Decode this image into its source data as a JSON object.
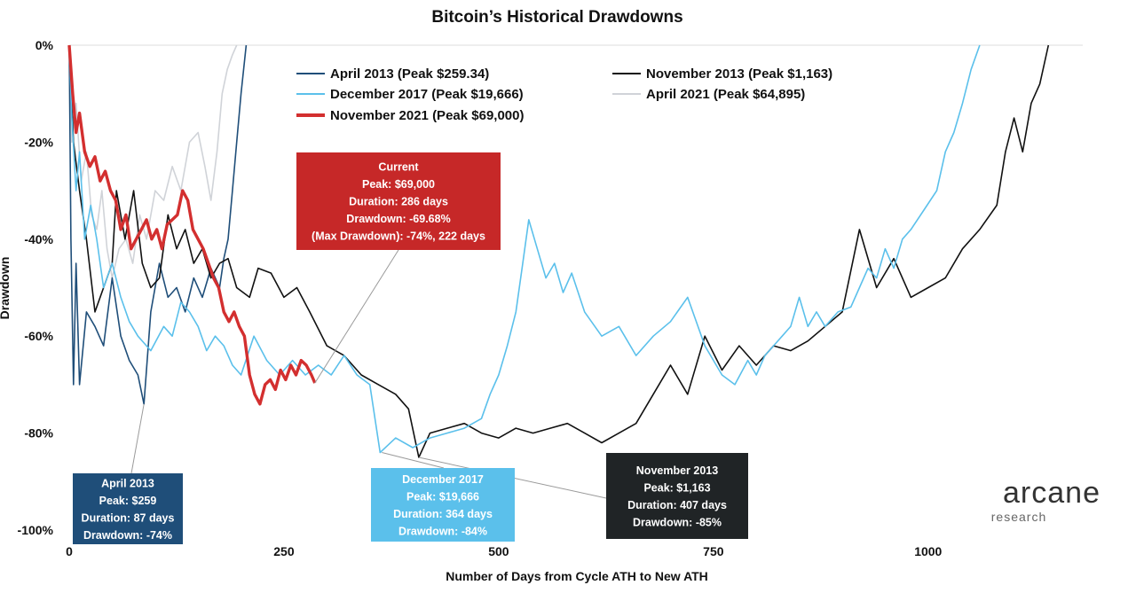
{
  "colors": {
    "apr2013": "#1f4e79",
    "nov2013": "#111111",
    "dec2017": "#5bc0eb",
    "apr2021": "#d0d3d8",
    "nov2021": "#d32f2f",
    "box_apr2013": "#1f4e79",
    "box_dec2017": "#5bc0eb",
    "box_nov2013": "#202426",
    "box_current": "#c62828"
  },
  "logo": {
    "name": "arcane",
    "sub": "research"
  },
  "chart_data": {
    "type": "line",
    "title": "Bitcoin’s Historical Drawdowns",
    "xlabel": "Number of Days from Cycle ATH to New ATH",
    "ylabel": "Drawdown",
    "xlim": [
      0,
      1180
    ],
    "ylim": [
      -100,
      0
    ],
    "xticks": [
      0,
      250,
      500,
      750,
      1000
    ],
    "yticks": [
      0,
      -20,
      -40,
      -60,
      -80,
      -100
    ],
    "ytick_labels": [
      "0%",
      "-20%",
      "-40%",
      "-60%",
      "-80%",
      "-100%"
    ],
    "grid": false,
    "legend_position": "top",
    "series": [
      {
        "key": "apr2013",
        "name": "April 2013 (Peak $259.34)",
        "width": 1.6,
        "points": [
          [
            0,
            0
          ],
          [
            2,
            -40
          ],
          [
            5,
            -70
          ],
          [
            8,
            -45
          ],
          [
            12,
            -70
          ],
          [
            20,
            -55
          ],
          [
            30,
            -58
          ],
          [
            40,
            -62
          ],
          [
            50,
            -48
          ],
          [
            60,
            -60
          ],
          [
            70,
            -65
          ],
          [
            80,
            -68
          ],
          [
            87,
            -74
          ],
          [
            95,
            -55
          ],
          [
            105,
            -45
          ],
          [
            115,
            -52
          ],
          [
            125,
            -50
          ],
          [
            135,
            -55
          ],
          [
            145,
            -48
          ],
          [
            155,
            -52
          ],
          [
            165,
            -46
          ],
          [
            175,
            -50
          ],
          [
            180,
            -44
          ],
          [
            185,
            -40
          ],
          [
            190,
            -30
          ],
          [
            195,
            -20
          ],
          [
            200,
            -10
          ],
          [
            206,
            0
          ]
        ]
      },
      {
        "key": "nov2013",
        "name": "November 2013 (Peak $1,163)",
        "width": 1.6,
        "points": [
          [
            0,
            0
          ],
          [
            5,
            -20
          ],
          [
            12,
            -30
          ],
          [
            20,
            -40
          ],
          [
            30,
            -55
          ],
          [
            40,
            -50
          ],
          [
            50,
            -45
          ],
          [
            55,
            -30
          ],
          [
            65,
            -40
          ],
          [
            75,
            -30
          ],
          [
            85,
            -45
          ],
          [
            95,
            -50
          ],
          [
            105,
            -48
          ],
          [
            115,
            -35
          ],
          [
            125,
            -42
          ],
          [
            135,
            -38
          ],
          [
            145,
            -45
          ],
          [
            155,
            -42
          ],
          [
            165,
            -48
          ],
          [
            175,
            -45
          ],
          [
            185,
            -44
          ],
          [
            195,
            -50
          ],
          [
            210,
            -52
          ],
          [
            220,
            -46
          ],
          [
            235,
            -47
          ],
          [
            250,
            -52
          ],
          [
            265,
            -50
          ],
          [
            280,
            -55
          ],
          [
            300,
            -62
          ],
          [
            320,
            -64
          ],
          [
            340,
            -68
          ],
          [
            360,
            -70
          ],
          [
            380,
            -72
          ],
          [
            395,
            -75
          ],
          [
            407,
            -85
          ],
          [
            420,
            -80
          ],
          [
            440,
            -79
          ],
          [
            460,
            -78
          ],
          [
            480,
            -80
          ],
          [
            500,
            -81
          ],
          [
            520,
            -79
          ],
          [
            540,
            -80
          ],
          [
            560,
            -79
          ],
          [
            580,
            -78
          ],
          [
            600,
            -80
          ],
          [
            620,
            -82
          ],
          [
            640,
            -80
          ],
          [
            660,
            -78
          ],
          [
            680,
            -72
          ],
          [
            700,
            -66
          ],
          [
            720,
            -72
          ],
          [
            740,
            -60
          ],
          [
            760,
            -67
          ],
          [
            780,
            -62
          ],
          [
            800,
            -66
          ],
          [
            820,
            -62
          ],
          [
            840,
            -63
          ],
          [
            860,
            -61
          ],
          [
            880,
            -58
          ],
          [
            900,
            -55
          ],
          [
            920,
            -38
          ],
          [
            940,
            -50
          ],
          [
            960,
            -44
          ],
          [
            980,
            -52
          ],
          [
            1000,
            -50
          ],
          [
            1020,
            -48
          ],
          [
            1040,
            -42
          ],
          [
            1060,
            -38
          ],
          [
            1080,
            -33
          ],
          [
            1090,
            -22
          ],
          [
            1100,
            -15
          ],
          [
            1110,
            -22
          ],
          [
            1120,
            -12
          ],
          [
            1130,
            -8
          ],
          [
            1140,
            0
          ]
        ]
      },
      {
        "key": "dec2017",
        "name": "December 2017 (Peak $19,666)",
        "width": 1.6,
        "points": [
          [
            0,
            0
          ],
          [
            3,
            -15
          ],
          [
            8,
            -30
          ],
          [
            12,
            -22
          ],
          [
            18,
            -40
          ],
          [
            25,
            -33
          ],
          [
            32,
            -40
          ],
          [
            40,
            -50
          ],
          [
            50,
            -45
          ],
          [
            60,
            -52
          ],
          [
            70,
            -57
          ],
          [
            80,
            -60
          ],
          [
            95,
            -63
          ],
          [
            110,
            -58
          ],
          [
            120,
            -60
          ],
          [
            130,
            -53
          ],
          [
            140,
            -55
          ],
          [
            150,
            -58
          ],
          [
            160,
            -63
          ],
          [
            170,
            -60
          ],
          [
            180,
            -62
          ],
          [
            190,
            -66
          ],
          [
            200,
            -68
          ],
          [
            215,
            -60
          ],
          [
            230,
            -65
          ],
          [
            245,
            -68
          ],
          [
            260,
            -65
          ],
          [
            275,
            -68
          ],
          [
            290,
            -66
          ],
          [
            305,
            -68
          ],
          [
            320,
            -64
          ],
          [
            335,
            -68
          ],
          [
            350,
            -70
          ],
          [
            362,
            -84
          ],
          [
            380,
            -81
          ],
          [
            400,
            -83
          ],
          [
            420,
            -81
          ],
          [
            440,
            -80
          ],
          [
            460,
            -79
          ],
          [
            480,
            -77
          ],
          [
            490,
            -72
          ],
          [
            500,
            -68
          ],
          [
            510,
            -62
          ],
          [
            520,
            -55
          ],
          [
            528,
            -45
          ],
          [
            535,
            -36
          ],
          [
            545,
            -42
          ],
          [
            555,
            -48
          ],
          [
            565,
            -45
          ],
          [
            575,
            -51
          ],
          [
            585,
            -47
          ],
          [
            600,
            -55
          ],
          [
            620,
            -60
          ],
          [
            640,
            -58
          ],
          [
            660,
            -64
          ],
          [
            680,
            -60
          ],
          [
            700,
            -57
          ],
          [
            720,
            -52
          ],
          [
            740,
            -62
          ],
          [
            760,
            -68
          ],
          [
            775,
            -70
          ],
          [
            790,
            -65
          ],
          [
            800,
            -68
          ],
          [
            810,
            -64
          ],
          [
            820,
            -62
          ],
          [
            830,
            -60
          ],
          [
            840,
            -58
          ],
          [
            850,
            -52
          ],
          [
            860,
            -58
          ],
          [
            870,
            -55
          ],
          [
            880,
            -58
          ],
          [
            895,
            -55
          ],
          [
            910,
            -54
          ],
          [
            920,
            -50
          ],
          [
            930,
            -46
          ],
          [
            940,
            -48
          ],
          [
            950,
            -42
          ],
          [
            960,
            -46
          ],
          [
            970,
            -40
          ],
          [
            980,
            -38
          ],
          [
            995,
            -34
          ],
          [
            1010,
            -30
          ],
          [
            1020,
            -22
          ],
          [
            1030,
            -18
          ],
          [
            1040,
            -12
          ],
          [
            1050,
            -5
          ],
          [
            1060,
            0
          ]
        ]
      },
      {
        "key": "apr2021",
        "name": "April 2021 (Peak $64,895)",
        "width": 1.6,
        "points": [
          [
            0,
            0
          ],
          [
            3,
            -20
          ],
          [
            8,
            -12
          ],
          [
            14,
            -28
          ],
          [
            20,
            -22
          ],
          [
            26,
            -35
          ],
          [
            32,
            -38
          ],
          [
            38,
            -30
          ],
          [
            44,
            -42
          ],
          [
            50,
            -48
          ],
          [
            58,
            -42
          ],
          [
            66,
            -40
          ],
          [
            74,
            -45
          ],
          [
            82,
            -35
          ],
          [
            90,
            -40
          ],
          [
            100,
            -30
          ],
          [
            110,
            -32
          ],
          [
            120,
            -25
          ],
          [
            130,
            -30
          ],
          [
            140,
            -20
          ],
          [
            150,
            -18
          ],
          [
            158,
            -25
          ],
          [
            165,
            -32
          ],
          [
            172,
            -22
          ],
          [
            178,
            -10
          ],
          [
            184,
            -5
          ],
          [
            190,
            -2
          ],
          [
            195,
            0
          ]
        ]
      },
      {
        "key": "nov2021",
        "name": "November 2021 (Peak $69,000)",
        "width": 3.4,
        "points": [
          [
            0,
            0
          ],
          [
            4,
            -10
          ],
          [
            8,
            -18
          ],
          [
            12,
            -14
          ],
          [
            18,
            -22
          ],
          [
            24,
            -25
          ],
          [
            30,
            -23
          ],
          [
            36,
            -28
          ],
          [
            42,
            -26
          ],
          [
            48,
            -30
          ],
          [
            54,
            -32
          ],
          [
            60,
            -38
          ],
          [
            66,
            -35
          ],
          [
            72,
            -42
          ],
          [
            78,
            -40
          ],
          [
            84,
            -38
          ],
          [
            90,
            -36
          ],
          [
            96,
            -40
          ],
          [
            102,
            -38
          ],
          [
            108,
            -42
          ],
          [
            114,
            -37
          ],
          [
            120,
            -36
          ],
          [
            126,
            -35
          ],
          [
            132,
            -30
          ],
          [
            138,
            -32
          ],
          [
            144,
            -38
          ],
          [
            150,
            -40
          ],
          [
            156,
            -42
          ],
          [
            162,
            -45
          ],
          [
            168,
            -48
          ],
          [
            174,
            -50
          ],
          [
            180,
            -55
          ],
          [
            186,
            -57
          ],
          [
            192,
            -55
          ],
          [
            198,
            -58
          ],
          [
            204,
            -60
          ],
          [
            210,
            -68
          ],
          [
            216,
            -72
          ],
          [
            222,
            -74
          ],
          [
            228,
            -70
          ],
          [
            234,
            -69
          ],
          [
            240,
            -71
          ],
          [
            246,
            -67
          ],
          [
            252,
            -69
          ],
          [
            258,
            -66
          ],
          [
            264,
            -68
          ],
          [
            270,
            -65
          ],
          [
            276,
            -66
          ],
          [
            282,
            -68
          ],
          [
            286,
            -69.68
          ]
        ]
      }
    ],
    "annotations": [
      {
        "key": "apr2013",
        "lines": [
          "April 2013",
          "Peak: $259",
          "Duration: 87 days",
          "Drawdown: -74%"
        ],
        "x": 87,
        "y": -74
      },
      {
        "key": "dec2017",
        "lines": [
          "December 2017",
          "Peak: $19,666",
          "Duration: 364 days",
          "Drawdown: -84%"
        ],
        "x": 364,
        "y": -84
      },
      {
        "key": "nov2013",
        "lines": [
          "November 2013",
          "Peak: $1,163",
          "Duration: 407 days",
          "Drawdown: -85%"
        ],
        "x": 407,
        "y": -85
      },
      {
        "key": "current",
        "lines": [
          "Current",
          "Peak: $69,000",
          "Duration: 286 days",
          "Drawdown: -69.68%",
          "(Max Drawdown): -74%, 222 days"
        ],
        "x": 286,
        "y": -69.68
      }
    ]
  }
}
